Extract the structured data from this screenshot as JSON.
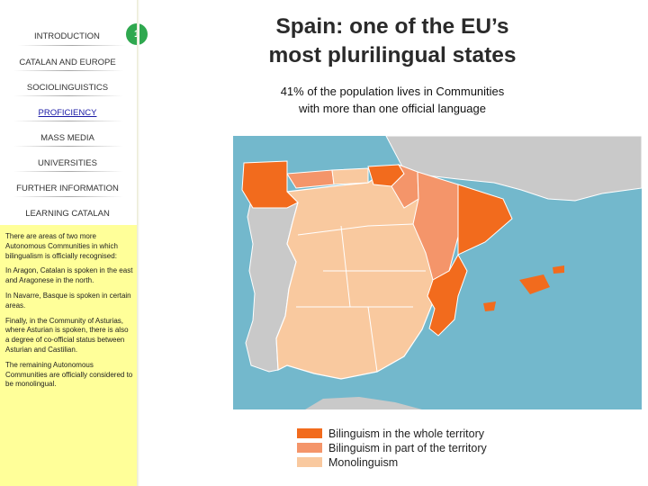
{
  "nav": {
    "page_number": "1",
    "items": [
      {
        "label": "INTRODUCTION"
      },
      {
        "label": "CATALAN AND EUROPE"
      },
      {
        "label": "SOCIOLINGUISTICS"
      },
      {
        "label": "PROFICIENCY"
      },
      {
        "label": "MASS MEDIA"
      },
      {
        "label": "UNIVERSITIES"
      },
      {
        "label": "FURTHER INFORMATION"
      },
      {
        "label": "LEARNING CATALAN"
      }
    ],
    "active_item": "PROFICIENCY"
  },
  "notes": [
    "There are areas of two more Autonomous Communities in which bilingualism is officially recognised:",
    "In Aragon, Catalan is spoken in the east and Aragonese in the north.",
    "In Navarre, Basque is spoken in certain areas.",
    "Finally, in the Community of Asturias, where Asturian is spoken, there is also a degree of co-official status between Asturian and Castilian.",
    "The remaining Autonomous Communities are officially considered to be monolingual."
  ],
  "main": {
    "title_line1": "Spain: one of the EU’s",
    "title_line2": "most plurilingual states",
    "subtitle_line1": "41% of the population lives in Communities",
    "subtitle_line2": "with more than one official language"
  },
  "legend": [
    {
      "label": "Bilinguism in the whole territory",
      "color": "#f26b1d"
    },
    {
      "label": "Bilinguism in part of the territory",
      "color": "#f4956a"
    },
    {
      "label": "Monolinguism",
      "color": "#f9c99f"
    }
  ],
  "colors": {
    "sea": "#73b8cc",
    "other_land": "#c9c9c9",
    "sidebar_panel": "#ffff99",
    "badge": "#2fa84f",
    "active_link": "#1a1aa6"
  }
}
